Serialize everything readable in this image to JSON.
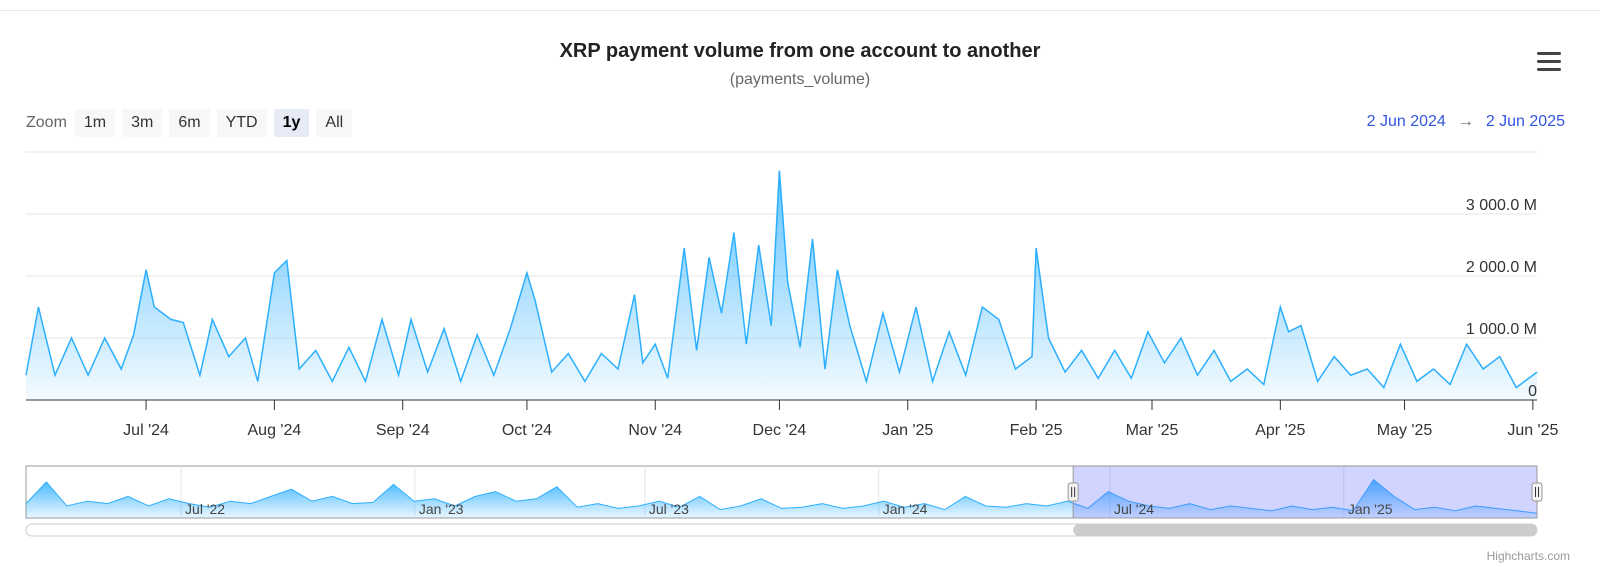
{
  "title": "XRP payment volume from one account to another",
  "subtitle": "(payments_volume)",
  "menu_icon": "hamburger-menu-icon",
  "zoom": {
    "label": "Zoom",
    "buttons": [
      "1m",
      "3m",
      "6m",
      "YTD",
      "1y",
      "All"
    ],
    "active": "1y"
  },
  "range": {
    "from": "2 Jun 2024",
    "arrow": "→",
    "to": "2 Jun 2025"
  },
  "credits": "Highcharts.com",
  "colors": {
    "line": "#2caffe",
    "fill_top": "#2caffe",
    "navigator_mask": "#c7cbff"
  },
  "chart_data": {
    "type": "area",
    "title": "XRP payment volume from one account to another",
    "subtitle": "(payments_volume)",
    "xlabel": "",
    "ylabel": "",
    "x_range": [
      "2024-06-02",
      "2025-06-02"
    ],
    "ylim": [
      0,
      4000
    ],
    "y_ticks": [
      0,
      1000,
      2000,
      3000
    ],
    "y_tick_labels": [
      "0",
      "1 000.0 M",
      "2 000.0 M",
      "3 000.0 M"
    ],
    "y_unit": "M",
    "x_tick_labels": [
      "Jul '24",
      "Aug '24",
      "Sep '24",
      "Oct '24",
      "Nov '24",
      "Dec '24",
      "Jan '25",
      "Feb '25",
      "Mar '25",
      "Apr '25",
      "May '25",
      "Jun '25"
    ],
    "grid": true,
    "legend": "none",
    "series": [
      {
        "x": [
          "2024-06-02",
          "2024-06-05",
          "2024-06-09",
          "2024-06-13",
          "2024-06-17",
          "2024-06-21",
          "2024-06-25",
          "2024-06-28",
          "2024-07-01",
          "2024-07-03",
          "2024-07-07",
          "2024-07-10",
          "2024-07-14",
          "2024-07-17",
          "2024-07-21",
          "2024-07-25",
          "2024-07-28",
          "2024-08-01",
          "2024-08-04",
          "2024-08-07",
          "2024-08-11",
          "2024-08-15",
          "2024-08-19",
          "2024-08-23",
          "2024-08-27",
          "2024-08-31",
          "2024-09-03",
          "2024-09-07",
          "2024-09-11",
          "2024-09-15",
          "2024-09-19",
          "2024-09-23",
          "2024-09-27",
          "2024-10-01",
          "2024-10-03",
          "2024-10-07",
          "2024-10-11",
          "2024-10-15",
          "2024-10-19",
          "2024-10-23",
          "2024-10-27",
          "2024-10-29",
          "2024-11-01",
          "2024-11-04",
          "2024-11-08",
          "2024-11-11",
          "2024-11-14",
          "2024-11-17",
          "2024-11-20",
          "2024-11-23",
          "2024-11-26",
          "2024-11-29",
          "2024-12-01",
          "2024-12-03",
          "2024-12-06",
          "2024-12-09",
          "2024-12-12",
          "2024-12-15",
          "2024-12-18",
          "2024-12-22",
          "2024-12-26",
          "2024-12-30",
          "2025-01-03",
          "2025-01-07",
          "2025-01-11",
          "2025-01-15",
          "2025-01-19",
          "2025-01-23",
          "2025-01-27",
          "2025-01-31",
          "2025-02-01",
          "2025-02-04",
          "2025-02-08",
          "2025-02-12",
          "2025-02-16",
          "2025-02-20",
          "2025-02-24",
          "2025-02-28",
          "2025-03-04",
          "2025-03-08",
          "2025-03-12",
          "2025-03-16",
          "2025-03-20",
          "2025-03-24",
          "2025-03-28",
          "2025-04-01",
          "2025-04-03",
          "2025-04-06",
          "2025-04-10",
          "2025-04-14",
          "2025-04-18",
          "2025-04-22",
          "2025-04-26",
          "2025-04-30",
          "2025-05-04",
          "2025-05-08",
          "2025-05-12",
          "2025-05-16",
          "2025-05-20",
          "2025-05-24",
          "2025-05-28",
          "2025-06-02"
        ],
        "values": [
          400,
          1500,
          400,
          1000,
          400,
          1000,
          500,
          1050,
          2100,
          1500,
          1300,
          1250,
          400,
          1300,
          700,
          1000,
          300,
          2050,
          2250,
          500,
          800,
          300,
          850,
          300,
          1300,
          400,
          1300,
          450,
          1150,
          300,
          1050,
          400,
          1150,
          2050,
          1600,
          450,
          750,
          300,
          750,
          500,
          1700,
          600,
          900,
          350,
          2450,
          800,
          2300,
          1400,
          2700,
          900,
          2500,
          1200,
          3700,
          1900,
          850,
          2600,
          500,
          2100,
          1200,
          300,
          1400,
          450,
          1500,
          300,
          1100,
          400,
          1500,
          1300,
          500,
          700,
          2450,
          1000,
          450,
          800,
          350,
          800,
          350,
          1100,
          600,
          1000,
          400,
          800,
          300,
          500,
          250,
          1500,
          1100,
          1200,
          300,
          700,
          400,
          500,
          200,
          900,
          300,
          500,
          250,
          900,
          500,
          700,
          200,
          450
        ]
      }
    ]
  },
  "navigator": {
    "x_tick_labels": [
      "Jul '22",
      "Jan '23",
      "Jul '23",
      "Jan '24",
      "Jul '24",
      "Jan '25"
    ],
    "selected_range": [
      "2024-06-02",
      "2025-06-02"
    ],
    "full_range": [
      "2022-03-01",
      "2025-06-02"
    ],
    "values": [
      600,
      1500,
      500,
      700,
      600,
      900,
      500,
      800,
      600,
      450,
      700,
      600,
      900,
      1200,
      700,
      900,
      600,
      650,
      1400,
      700,
      800,
      500,
      900,
      1100,
      700,
      800,
      1300,
      450,
      600,
      400,
      500,
      700,
      450,
      900,
      350,
      500,
      800,
      400,
      450,
      600,
      400,
      500,
      700,
      450,
      600,
      350,
      900,
      500,
      450,
      600,
      500,
      700,
      400,
      1100,
      700,
      500,
      400,
      600,
      350,
      500,
      400,
      300,
      500,
      350,
      450,
      300,
      1600,
      900,
      350,
      450,
      300,
      500,
      400,
      300,
      200
    ]
  }
}
